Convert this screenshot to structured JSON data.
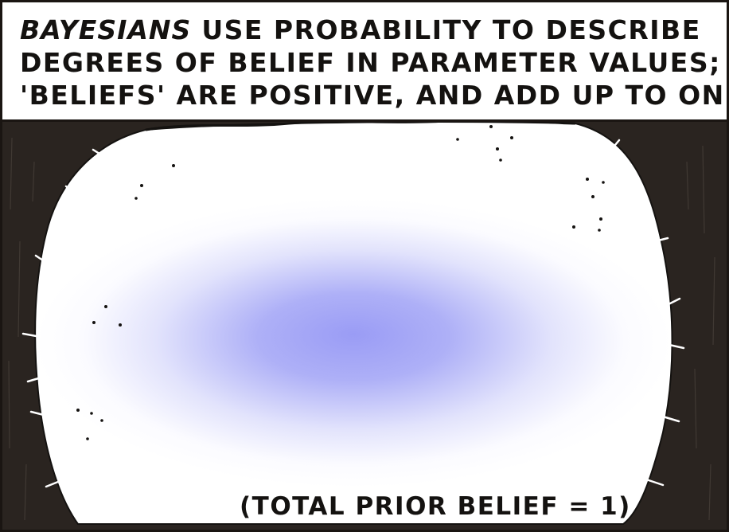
{
  "caption": {
    "line1_emphasis": "BAYESIANS",
    "line1_rest": " USE PROBABILITY TO DESCRIBE",
    "line2": "DEGREES OF BELIEF IN PARAMETER VALUES;",
    "line3": "'BELIEFS' ARE POSITIVE, AND ADD UP TO ONE;"
  },
  "footer": {
    "label": "(TOTAL PRIOR BELIEF = 1)"
  },
  "colors": {
    "ink": "#141210",
    "background_dark": "#2a2420",
    "blob_center": "#9a9cf5",
    "blob_edge": "#ffffff"
  },
  "icons": {
    "blob": "prior-belief-blob"
  }
}
